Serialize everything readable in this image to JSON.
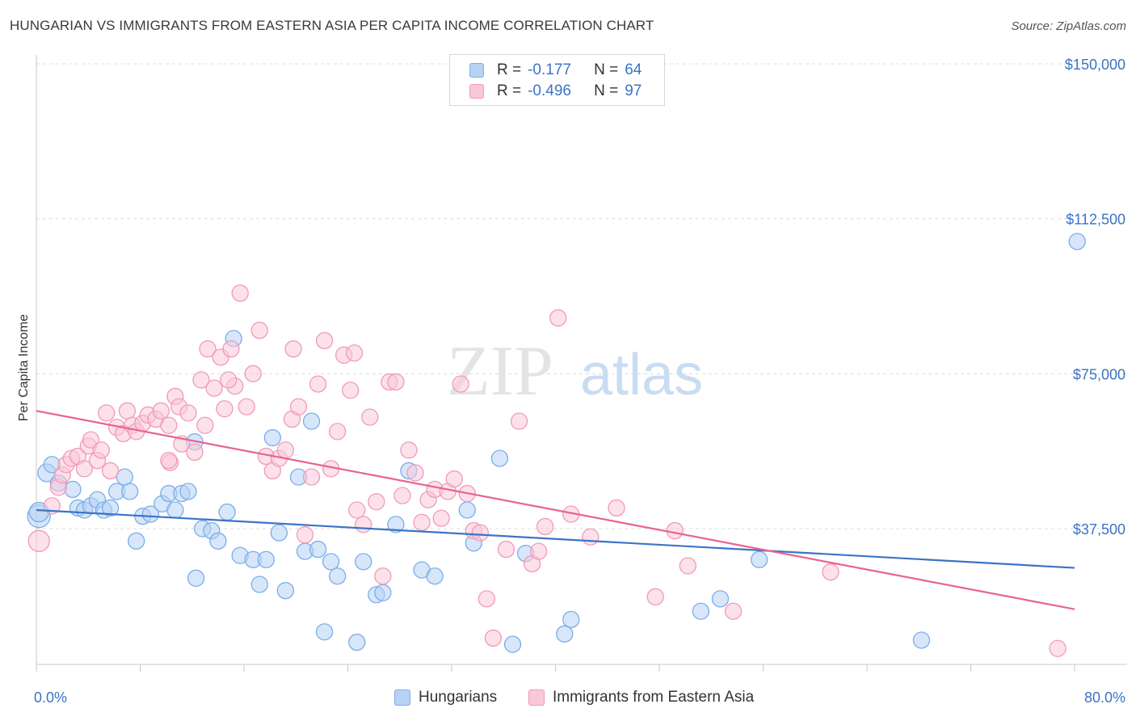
{
  "header": {
    "title": "HUNGARIAN VS IMMIGRANTS FROM EASTERN ASIA PER CAPITA INCOME CORRELATION CHART",
    "source": "Source: ZipAtlas.com"
  },
  "watermark": {
    "zip": "ZIP",
    "atlas": "atlas"
  },
  "legend": {
    "rows": [
      {
        "r_label": "R =",
        "r_value": "-0.177",
        "n_label": "N =",
        "n_value": "64",
        "color": "#7aaee8",
        "fill": "#b7d2f4"
      },
      {
        "r_label": "R =",
        "r_value": "-0.496",
        "n_label": "N =",
        "n_value": "97",
        "color": "#f09ab6",
        "fill": "#f9c8d8"
      }
    ]
  },
  "bottom_legend": {
    "hungarians": "Hungarians",
    "immigrants": "Immigrants from Eastern Asia"
  },
  "chart_data": {
    "type": "scatter",
    "ylabel": "Per Capita Income",
    "xlabel": "",
    "xlim": [
      0,
      80
    ],
    "ylim": [
      0,
      155000
    ],
    "x_tick_labels": [
      "0.0%",
      "80.0%"
    ],
    "y_ticks": [
      37500,
      75000,
      112500,
      150000
    ],
    "y_tick_labels": [
      "$37,500",
      "$75,000",
      "$112,500",
      "$150,000"
    ],
    "grid": true,
    "legend_position": "top-center",
    "series": [
      {
        "name": "Hungarians",
        "color": "#3b74c6",
        "fill": "#b7d2f4",
        "stroke": "#7aaee8",
        "trend": [
          [
            0,
            42000
          ],
          [
            80,
            28000
          ]
        ],
        "points": [
          [
            0.2,
            40500
          ],
          [
            0.2,
            41500
          ],
          [
            0.8,
            51000
          ],
          [
            1.2,
            53000
          ],
          [
            1.7,
            48500
          ],
          [
            2.8,
            47000
          ],
          [
            3.2,
            42500
          ],
          [
            3.7,
            42000
          ],
          [
            4.2,
            43000
          ],
          [
            4.7,
            44500
          ],
          [
            5.2,
            42000
          ],
          [
            5.7,
            42500
          ],
          [
            6.2,
            46500
          ],
          [
            6.8,
            50000
          ],
          [
            7.2,
            46500
          ],
          [
            7.7,
            34500
          ],
          [
            8.2,
            40500
          ],
          [
            8.8,
            41000
          ],
          [
            9.7,
            43500
          ],
          [
            10.2,
            46000
          ],
          [
            10.7,
            42000
          ],
          [
            11.2,
            46000
          ],
          [
            11.7,
            46500
          ],
          [
            12.2,
            58500
          ],
          [
            12.3,
            25500
          ],
          [
            12.8,
            37500
          ],
          [
            13.5,
            37000
          ],
          [
            14.0,
            34500
          ],
          [
            14.7,
            41500
          ],
          [
            15.2,
            83500
          ],
          [
            15.7,
            31000
          ],
          [
            16.7,
            30000
          ],
          [
            17.2,
            24000
          ],
          [
            17.7,
            30000
          ],
          [
            18.2,
            59500
          ],
          [
            18.7,
            36500
          ],
          [
            19.2,
            22500
          ],
          [
            20.2,
            50000
          ],
          [
            20.7,
            32000
          ],
          [
            21.2,
            63500
          ],
          [
            21.7,
            32500
          ],
          [
            22.2,
            12500
          ],
          [
            22.7,
            29500
          ],
          [
            23.2,
            26000
          ],
          [
            25.2,
            29500
          ],
          [
            24.7,
            10000
          ],
          [
            26.2,
            21500
          ],
          [
            26.7,
            22000
          ],
          [
            27.7,
            38500
          ],
          [
            28.7,
            51500
          ],
          [
            29.7,
            27500
          ],
          [
            30.7,
            26000
          ],
          [
            33.2,
            42000
          ],
          [
            33.7,
            34000
          ],
          [
            35.7,
            54500
          ],
          [
            36.7,
            9500
          ],
          [
            37.7,
            31500
          ],
          [
            40.7,
            12000
          ],
          [
            41.2,
            15500
          ],
          [
            51.2,
            17500
          ],
          [
            52.7,
            20500
          ],
          [
            55.7,
            30000
          ],
          [
            68.2,
            10500
          ],
          [
            80.2,
            107000
          ]
        ]
      },
      {
        "name": "Immigrants from Eastern Asia",
        "color": "#e8648f",
        "fill": "#f9c8d8",
        "stroke": "#f09ab6",
        "trend": [
          [
            0,
            66000
          ],
          [
            80,
            18000
          ]
        ],
        "points": [
          [
            0.2,
            34500
          ],
          [
            1.2,
            43000
          ],
          [
            1.7,
            47500
          ],
          [
            2.0,
            50500
          ],
          [
            2.3,
            53000
          ],
          [
            2.7,
            54500
          ],
          [
            3.2,
            55000
          ],
          [
            3.7,
            52000
          ],
          [
            4.0,
            57500
          ],
          [
            4.2,
            59000
          ],
          [
            4.7,
            54000
          ],
          [
            5.0,
            56500
          ],
          [
            5.4,
            65500
          ],
          [
            5.7,
            51500
          ],
          [
            6.2,
            62000
          ],
          [
            6.7,
            60500
          ],
          [
            7.0,
            66000
          ],
          [
            7.4,
            62500
          ],
          [
            7.7,
            61000
          ],
          [
            8.2,
            63000
          ],
          [
            8.6,
            65000
          ],
          [
            9.2,
            64000
          ],
          [
            9.6,
            66000
          ],
          [
            10.2,
            62500
          ],
          [
            10.3,
            53500
          ],
          [
            10.7,
            69500
          ],
          [
            11.0,
            67000
          ],
          [
            11.2,
            58000
          ],
          [
            11.7,
            65500
          ],
          [
            12.2,
            56000
          ],
          [
            12.7,
            73500
          ],
          [
            13.0,
            62500
          ],
          [
            13.2,
            81000
          ],
          [
            13.7,
            71500
          ],
          [
            14.2,
            79000
          ],
          [
            14.5,
            66500
          ],
          [
            15.0,
            81000
          ],
          [
            15.3,
            72000
          ],
          [
            15.7,
            94500
          ],
          [
            16.2,
            67000
          ],
          [
            16.7,
            75000
          ],
          [
            17.2,
            85500
          ],
          [
            17.7,
            55000
          ],
          [
            18.2,
            51500
          ],
          [
            18.7,
            54500
          ],
          [
            19.2,
            56500
          ],
          [
            19.7,
            64000
          ],
          [
            20.2,
            67000
          ],
          [
            20.7,
            36000
          ],
          [
            21.2,
            50000
          ],
          [
            21.7,
            72500
          ],
          [
            22.2,
            83000
          ],
          [
            22.7,
            52000
          ],
          [
            23.2,
            61000
          ],
          [
            23.7,
            79500
          ],
          [
            24.2,
            71000
          ],
          [
            24.5,
            80000
          ],
          [
            24.7,
            42000
          ],
          [
            25.2,
            38500
          ],
          [
            25.7,
            64500
          ],
          [
            26.2,
            44000
          ],
          [
            26.7,
            26000
          ],
          [
            27.2,
            73000
          ],
          [
            27.7,
            73000
          ],
          [
            28.7,
            56500
          ],
          [
            29.2,
            51000
          ],
          [
            29.7,
            39000
          ],
          [
            30.2,
            44500
          ],
          [
            30.7,
            47000
          ],
          [
            31.2,
            40000
          ],
          [
            31.7,
            46500
          ],
          [
            32.2,
            49500
          ],
          [
            32.7,
            72500
          ],
          [
            33.2,
            46000
          ],
          [
            33.7,
            37000
          ],
          [
            34.2,
            36500
          ],
          [
            34.7,
            20500
          ],
          [
            35.2,
            11000
          ],
          [
            37.2,
            63500
          ],
          [
            38.2,
            29000
          ],
          [
            38.7,
            32000
          ],
          [
            39.2,
            38000
          ],
          [
            40.2,
            88500
          ],
          [
            41.2,
            41000
          ],
          [
            42.7,
            35500
          ],
          [
            44.7,
            42500
          ],
          [
            47.7,
            21000
          ],
          [
            49.2,
            37000
          ],
          [
            50.2,
            28500
          ],
          [
            53.7,
            17500
          ],
          [
            61.2,
            27000
          ],
          [
            78.7,
            8500
          ],
          [
            10.2,
            54000
          ],
          [
            14.8,
            73500
          ],
          [
            19.8,
            81000
          ],
          [
            28.2,
            45500
          ],
          [
            36.2,
            32500
          ]
        ]
      }
    ]
  }
}
